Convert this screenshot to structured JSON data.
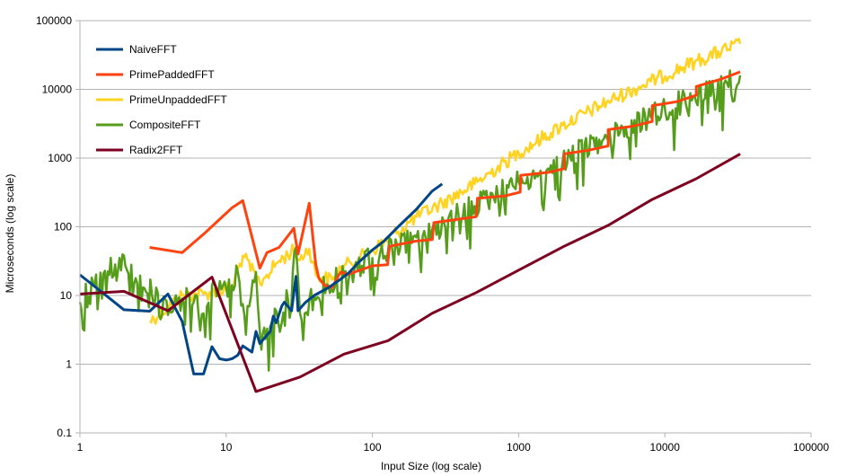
{
  "chart_data": {
    "type": "line",
    "title": "",
    "xlabel": "Input Size (log scale)",
    "ylabel": "Microseconds (log scale)",
    "x_scale": "log",
    "y_scale": "log",
    "xlim": [
      1,
      100000
    ],
    "ylim": [
      0.1,
      100000
    ],
    "x_ticks": [
      "1",
      "10",
      "100",
      "1000",
      "10000",
      "100000"
    ],
    "y_ticks": [
      "0.1",
      "1",
      "10",
      "100",
      "1000",
      "10000",
      "100000"
    ],
    "grid": "horizontal",
    "legend_position": "top-left",
    "series": [
      {
        "name": "NaiveFFT",
        "color": "#004586",
        "noisy": false,
        "points": [
          [
            1,
            20
          ],
          [
            2,
            6.2
          ],
          [
            3,
            5.9
          ],
          [
            4,
            10.5
          ],
          [
            5,
            4.2
          ],
          [
            6,
            0.72
          ],
          [
            7,
            0.72
          ],
          [
            8,
            1.8
          ],
          [
            9,
            1.2
          ],
          [
            10,
            1.15
          ],
          [
            11,
            1.2
          ],
          [
            12,
            1.35
          ],
          [
            13,
            1.85
          ],
          [
            15,
            1.5
          ],
          [
            16,
            3
          ],
          [
            17,
            2
          ],
          [
            20,
            3
          ],
          [
            21,
            5
          ],
          [
            22,
            4
          ],
          [
            24,
            7
          ],
          [
            25,
            8
          ],
          [
            28,
            6
          ],
          [
            30,
            19
          ],
          [
            31,
            6
          ],
          [
            35,
            8
          ],
          [
            40,
            10
          ],
          [
            50,
            13
          ],
          [
            60,
            17
          ],
          [
            70,
            22
          ],
          [
            80,
            30
          ],
          [
            100,
            46
          ],
          [
            120,
            62
          ],
          [
            150,
            100
          ],
          [
            200,
            180
          ],
          [
            256,
            330
          ],
          [
            300,
            420
          ]
        ]
      },
      {
        "name": "PrimePaddedFFT",
        "color": "#ff420e",
        "noisy": false,
        "points": [
          [
            3,
            50
          ],
          [
            5,
            42
          ],
          [
            7,
            78
          ],
          [
            11,
            190
          ],
          [
            13,
            240
          ],
          [
            17,
            25
          ],
          [
            19,
            42
          ],
          [
            23,
            50
          ],
          [
            29,
            95
          ],
          [
            31,
            40
          ],
          [
            37,
            220
          ],
          [
            41,
            28
          ],
          [
            43,
            18
          ],
          [
            47,
            14
          ],
          [
            53,
            13
          ],
          [
            59,
            20
          ],
          [
            61,
            22
          ],
          [
            67,
            20
          ],
          [
            71,
            21
          ],
          [
            100,
            27
          ],
          [
            127,
            28
          ],
          [
            131,
            52
          ],
          [
            200,
            62
          ],
          [
            257,
            65
          ],
          [
            263,
            115
          ],
          [
            400,
            130
          ],
          [
            513,
            140
          ],
          [
            523,
            260
          ],
          [
            800,
            280
          ],
          [
            1025,
            320
          ],
          [
            1033,
            560
          ],
          [
            1600,
            620
          ],
          [
            2049,
            700
          ],
          [
            2053,
            1150
          ],
          [
            3000,
            1300
          ],
          [
            4097,
            1500
          ],
          [
            4099,
            2600
          ],
          [
            6000,
            2900
          ],
          [
            8193,
            3400
          ],
          [
            8209,
            5800
          ],
          [
            12000,
            6600
          ],
          [
            16385,
            8200
          ],
          [
            16411,
            11000
          ],
          [
            24000,
            14000
          ],
          [
            32749,
            18000
          ]
        ]
      },
      {
        "name": "PrimeUnpaddedFFT",
        "color": "#ffd320",
        "noisy": true,
        "points": [
          [
            3,
            4.2
          ],
          [
            5,
            10
          ],
          [
            7,
            10.5
          ],
          [
            11,
            13
          ],
          [
            13,
            38
          ],
          [
            17,
            15
          ],
          [
            19,
            20
          ],
          [
            23,
            32
          ],
          [
            29,
            45
          ],
          [
            31,
            33
          ],
          [
            37,
            48
          ],
          [
            41,
            20
          ],
          [
            47,
            18
          ],
          [
            53,
            17
          ],
          [
            61,
            25
          ],
          [
            71,
            30
          ],
          [
            100,
            45
          ],
          [
            150,
            85
          ],
          [
            200,
            140
          ],
          [
            300,
            220
          ],
          [
            500,
            420
          ],
          [
            1000,
            1200
          ],
          [
            2000,
            3000
          ],
          [
            4000,
            6500
          ],
          [
            8000,
            13000
          ],
          [
            16000,
            25000
          ],
          [
            32749,
            46000
          ]
        ]
      },
      {
        "name": "CompositeFFT",
        "color": "#579d1c",
        "noisy": true,
        "points": [
          [
            1,
            8
          ],
          [
            2,
            38
          ],
          [
            4,
            5.2
          ],
          [
            5,
            9
          ],
          [
            6,
            8
          ],
          [
            7,
            5.5
          ],
          [
            8,
            14
          ],
          [
            10,
            13
          ],
          [
            12,
            22
          ],
          [
            13,
            7.5
          ],
          [
            14,
            7
          ],
          [
            16,
            22
          ],
          [
            17,
            3
          ],
          [
            20,
            3.5
          ],
          [
            22,
            6
          ],
          [
            24,
            4
          ],
          [
            30,
            50
          ],
          [
            32,
            5.5
          ],
          [
            40,
            10
          ],
          [
            50,
            14
          ],
          [
            64,
            20
          ],
          [
            100,
            35
          ],
          [
            128,
            45
          ],
          [
            200,
            70
          ],
          [
            256,
            90
          ],
          [
            500,
            200
          ],
          [
            1000,
            450
          ],
          [
            2000,
            900
          ],
          [
            4000,
            2000
          ],
          [
            8000,
            4000
          ],
          [
            16000,
            8000
          ],
          [
            32768,
            16000
          ]
        ]
      },
      {
        "name": "Radix2FFT",
        "color": "#7e0021",
        "noisy": false,
        "points": [
          [
            1,
            10.5
          ],
          [
            2,
            11.5
          ],
          [
            4,
            6
          ],
          [
            8,
            18.5
          ],
          [
            16,
            0.4
          ],
          [
            32,
            0.65
          ],
          [
            64,
            1.4
          ],
          [
            128,
            2.2
          ],
          [
            256,
            5.5
          ],
          [
            512,
            11
          ],
          [
            1024,
            24
          ],
          [
            2048,
            52
          ],
          [
            4096,
            105
          ],
          [
            8192,
            250
          ],
          [
            16384,
            500
          ],
          [
            32768,
            1150
          ]
        ]
      }
    ]
  }
}
